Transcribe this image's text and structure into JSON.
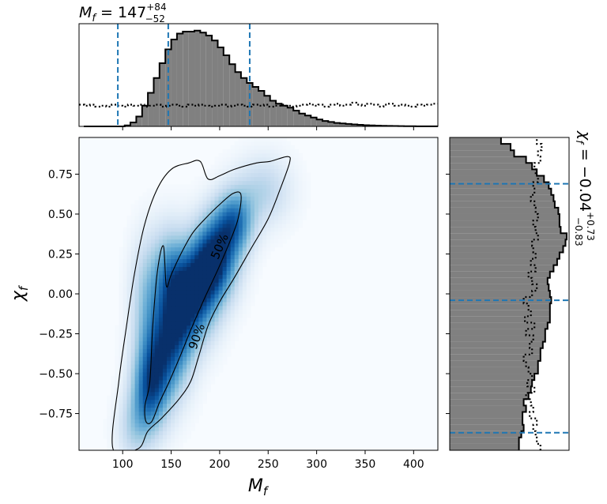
{
  "figure": {
    "top_title": {
      "main": "M",
      "sub": "f",
      "eq": " = 147",
      "sup": "+84",
      "sub2": "−52"
    },
    "right_title": {
      "main": "χ",
      "sub": "f",
      "eq": " = −0.04",
      "sup": "+0.73",
      "sub2": "−0.83"
    },
    "xlabel": {
      "main": "M",
      "sub": "f"
    },
    "ylabel": {
      "main": "χ",
      "sub": "f"
    },
    "contour_labels": [
      "50%",
      "90%"
    ]
  },
  "chart_data": [
    {
      "type": "heatmap",
      "name": "joint",
      "xlim": [
        55,
        425
      ],
      "ylim": [
        -0.98,
        0.98
      ],
      "xticks": [
        100,
        150,
        200,
        250,
        300,
        350,
        400
      ],
      "xtick_labels": [
        "100",
        "150",
        "200",
        "250",
        "300",
        "350",
        "400"
      ],
      "yticks": [
        0.75,
        0.5,
        0.25,
        0.0,
        -0.25,
        -0.5,
        -0.75
      ],
      "ytick_labels": [
        "0.75",
        "0.50",
        "0.25",
        "0.00",
        "−0.25",
        "−0.50",
        "−0.75"
      ],
      "colormap": "Blues",
      "contours": [
        {
          "label": "50%",
          "points": [
            [
              128,
              -0.55
            ],
            [
              131,
              -0.2
            ],
            [
              136,
              0.15
            ],
            [
              142,
              0.3
            ],
            [
              145,
              0.05
            ],
            [
              150,
              0.12
            ],
            [
              160,
              0.25
            ],
            [
              172,
              0.38
            ],
            [
              185,
              0.47
            ],
            [
              200,
              0.56
            ],
            [
              214,
              0.63
            ],
            [
              222,
              0.62
            ],
            [
              219,
              0.47
            ],
            [
              210,
              0.32
            ],
            [
              198,
              0.15
            ],
            [
              185,
              -0.02
            ],
            [
              172,
              -0.2
            ],
            [
              160,
              -0.38
            ],
            [
              148,
              -0.55
            ],
            [
              138,
              -0.68
            ],
            [
              130,
              -0.8
            ],
            [
              124,
              -0.8
            ],
            [
              123,
              -0.7
            ]
          ]
        },
        {
          "label": "90%",
          "points": [
            [
              90,
              -0.97
            ],
            [
              96,
              -0.55
            ],
            [
              104,
              -0.2
            ],
            [
              112,
              0.12
            ],
            [
              122,
              0.42
            ],
            [
              135,
              0.65
            ],
            [
              150,
              0.78
            ],
            [
              168,
              0.82
            ],
            [
              180,
              0.83
            ],
            [
              188,
              0.72
            ],
            [
              200,
              0.74
            ],
            [
              215,
              0.78
            ],
            [
              238,
              0.82
            ],
            [
              252,
              0.83
            ],
            [
              270,
              0.86
            ],
            [
              272,
              0.82
            ],
            [
              262,
              0.65
            ],
            [
              250,
              0.47
            ],
            [
              232,
              0.28
            ],
            [
              215,
              0.1
            ],
            [
              200,
              -0.05
            ],
            [
              188,
              -0.2
            ],
            [
              178,
              -0.4
            ],
            [
              170,
              -0.55
            ],
            [
              158,
              -0.66
            ],
            [
              140,
              -0.78
            ],
            [
              126,
              -0.86
            ],
            [
              116,
              -0.97
            ]
          ]
        }
      ],
      "density_blobs": [
        {
          "x": 195,
          "y": 0.22,
          "sx": 16,
          "sy": 0.18,
          "w": 1.0
        },
        {
          "x": 175,
          "y": 0.0,
          "sx": 16,
          "sy": 0.2,
          "w": 0.85
        },
        {
          "x": 155,
          "y": -0.2,
          "sx": 14,
          "sy": 0.25,
          "w": 0.75
        },
        {
          "x": 135,
          "y": -0.45,
          "sx": 14,
          "sy": 0.22,
          "w": 0.7
        },
        {
          "x": 125,
          "y": -0.65,
          "sx": 12,
          "sy": 0.18,
          "w": 0.5
        },
        {
          "x": 215,
          "y": 0.45,
          "sx": 14,
          "sy": 0.14,
          "w": 0.7
        },
        {
          "x": 148,
          "y": 0.15,
          "sx": 12,
          "sy": 0.2,
          "w": 0.4
        },
        {
          "x": 125,
          "y": 0.0,
          "sx": 12,
          "sy": 0.25,
          "w": 0.35
        },
        {
          "x": 245,
          "y": 0.65,
          "sx": 20,
          "sy": 0.15,
          "w": 0.3
        },
        {
          "x": 110,
          "y": -0.85,
          "sx": 12,
          "sy": 0.15,
          "w": 0.25
        }
      ]
    },
    {
      "type": "bar",
      "name": "Mf-marginal",
      "xlabel": "",
      "bin_start": 60,
      "bin_width": 6,
      "posterior_heights": [
        0,
        0,
        0,
        0,
        0,
        0,
        0,
        0.01,
        0.04,
        0.1,
        0.21,
        0.34,
        0.49,
        0.64,
        0.78,
        0.88,
        0.94,
        0.96,
        0.96,
        0.97,
        0.95,
        0.92,
        0.87,
        0.8,
        0.72,
        0.63,
        0.55,
        0.49,
        0.44,
        0.4,
        0.36,
        0.31,
        0.26,
        0.23,
        0.21,
        0.19,
        0.16,
        0.13,
        0.11,
        0.09,
        0.07,
        0.055,
        0.045,
        0.035,
        0.03,
        0.025,
        0.02,
        0.016,
        0.012,
        0.01,
        0.008,
        0.006,
        0.005,
        0.004,
        0.003,
        0.002,
        0.002,
        0.001,
        0.001,
        0.001,
        0.001,
        0.0,
        0.0,
        0.0,
        0.0,
        0.0,
        0.0,
        0.0,
        0.0,
        0.0,
        0.0,
        0.0
      ],
      "prior_heights": [
        0.22,
        0.21,
        0.22,
        0.2,
        0.21,
        0.2,
        0.22,
        0.21,
        0.2,
        0.22,
        0.21,
        0.22,
        0.2,
        0.21,
        0.22,
        0.2,
        0.21,
        0.22,
        0.21,
        0.2,
        0.22,
        0.21,
        0.22,
        0.21,
        0.2,
        0.21,
        0.22,
        0.2,
        0.21,
        0.22,
        0.21,
        0.2,
        0.22,
        0.21,
        0.22,
        0.2,
        0.21,
        0.22,
        0.21,
        0.2,
        0.21,
        0.22,
        0.23,
        0.21,
        0.22,
        0.2,
        0.22,
        0.23,
        0.21,
        0.22,
        0.24,
        0.22,
        0.21,
        0.23,
        0.22,
        0.2,
        0.22,
        0.23,
        0.21,
        0.22,
        0.21,
        0.2,
        0.22,
        0.21,
        0.22,
        0.23
      ],
      "quantile_lines": [
        95,
        147,
        231
      ],
      "line_color": "#1f77b4"
    },
    {
      "type": "bar",
      "name": "chif-marginal",
      "orientation": "horizontal",
      "bin_start": -0.98,
      "bin_width": 0.04,
      "posterior_widths": [
        0.58,
        0.58,
        0.6,
        0.62,
        0.61,
        0.61,
        0.64,
        0.62,
        0.66,
        0.68,
        0.69,
        0.71,
        0.74,
        0.74,
        0.76,
        0.76,
        0.78,
        0.8,
        0.8,
        0.82,
        0.84,
        0.84,
        0.84,
        0.85,
        0.84,
        0.83,
        0.82,
        0.84,
        0.87,
        0.9,
        0.92,
        0.95,
        0.97,
        0.98,
        0.93,
        0.92,
        0.92,
        0.91,
        0.88,
        0.87,
        0.85,
        0.83,
        0.79,
        0.73,
        0.69,
        0.64,
        0.54,
        0.51,
        0.43,
        0.35,
        0.28
      ],
      "prior_widths": [
        0.76,
        0.73,
        0.72,
        0.7,
        0.73,
        0.67,
        0.7,
        0.68,
        0.64,
        0.71,
        0.65,
        0.69,
        0.66,
        0.64,
        0.62,
        0.69,
        0.67,
        0.7,
        0.64,
        0.71,
        0.63,
        0.68,
        0.66,
        0.62,
        0.69,
        0.73,
        0.69,
        0.66,
        0.72,
        0.68,
        0.72,
        0.7,
        0.69,
        0.74,
        0.72,
        0.7,
        0.74,
        0.72,
        0.71,
        0.68,
        0.71,
        0.7,
        0.74,
        0.72,
        0.71,
        0.76,
        0.74,
        0.77,
        0.73,
        0.75,
        0.78
      ],
      "quantile_lines": [
        -0.87,
        -0.04,
        0.69
      ],
      "line_color": "#1f77b4"
    }
  ]
}
